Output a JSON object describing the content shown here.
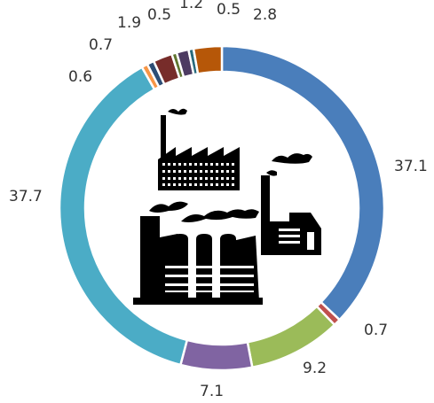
{
  "chart_data": {
    "type": "pie",
    "style": "donut",
    "center_icon": "factory-icon",
    "slices": [
      {
        "value": 37.1,
        "label": "37.1",
        "color": "#4a7ebb"
      },
      {
        "value": 0.7,
        "label": "0.7",
        "color": "#c0504d"
      },
      {
        "value": 9.2,
        "label": "9.2",
        "color": "#9bbb59"
      },
      {
        "value": 7.1,
        "label": "7.1",
        "color": "#8064a2"
      },
      {
        "value": 37.7,
        "label": "37.7",
        "color": "#4bacc6"
      },
      {
        "value": 0.6,
        "label": "0.6",
        "color": "#f79646"
      },
      {
        "value": 0.7,
        "label": "0.7",
        "color": "#2c4d75"
      },
      {
        "value": 1.9,
        "label": "1.9",
        "color": "#772c2a"
      },
      {
        "value": 0.5,
        "label": "0.5",
        "color": "#5f7530"
      },
      {
        "value": 1.2,
        "label": "1.2",
        "color": "#4d3b62"
      },
      {
        "value": 0.5,
        "label": "0.5",
        "color": "#276a7c"
      },
      {
        "value": 2.8,
        "label": "2.8",
        "color": "#b65708"
      }
    ]
  }
}
